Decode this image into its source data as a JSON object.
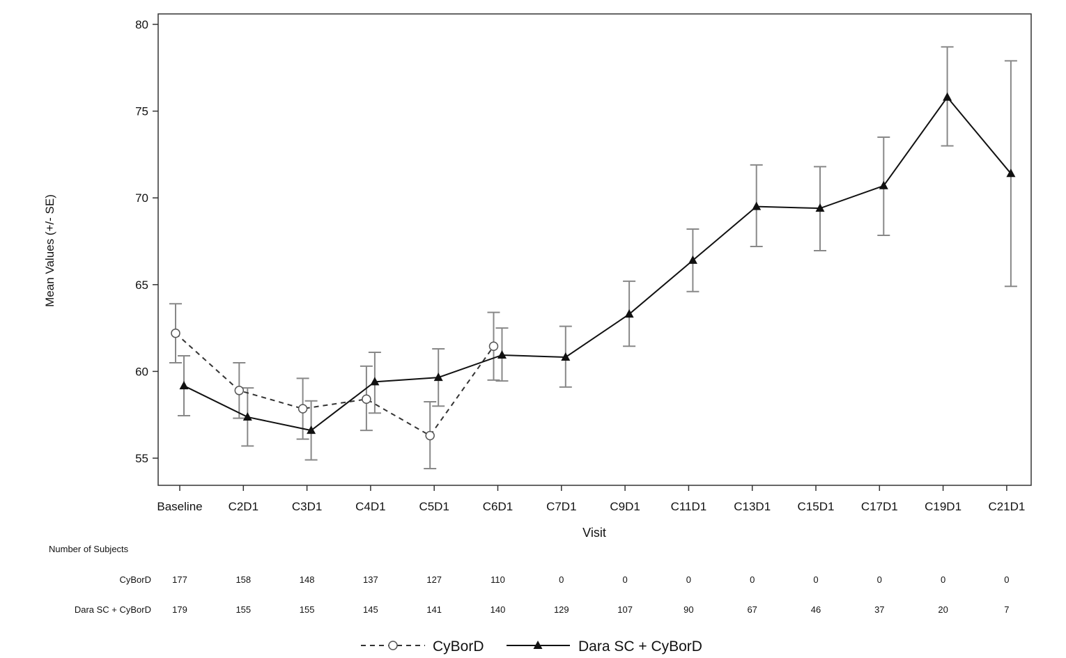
{
  "chart_data": {
    "type": "line",
    "xlabel": "Visit",
    "ylabel": "Mean Values (+/- SE)",
    "ylim": [
      53.5,
      81
    ],
    "yticks": [
      55,
      60,
      65,
      70,
      75,
      80
    ],
    "grid": false,
    "legend_position": "bottom",
    "categories": [
      "Baseline",
      "C2D1",
      "C3D1",
      "C4D1",
      "C5D1",
      "C6D1",
      "C7D1",
      "C9D1",
      "C11D1",
      "C13D1",
      "C15D1",
      "C17D1",
      "C19D1",
      "C21D1"
    ],
    "series": [
      {
        "name": "CyBorD",
        "style": "dashed",
        "marker": "open-circle",
        "color": "#333333",
        "values": [
          62.2,
          58.9,
          57.85,
          58.4,
          56.3,
          61.45,
          null,
          null,
          null,
          null,
          null,
          null,
          null,
          null
        ],
        "se_upper": [
          63.9,
          60.5,
          59.6,
          60.3,
          58.25,
          63.4,
          null,
          null,
          null,
          null,
          null,
          null,
          null,
          null
        ],
        "se_lower": [
          60.5,
          57.3,
          56.1,
          56.6,
          54.4,
          59.5,
          null,
          null,
          null,
          null,
          null,
          null,
          null,
          null
        ]
      },
      {
        "name": "Dara SC + CyBorD",
        "style": "solid",
        "marker": "filled-triangle",
        "color": "#111111",
        "values": [
          59.17,
          57.37,
          56.6,
          59.4,
          59.65,
          60.94,
          60.82,
          63.3,
          66.4,
          69.5,
          69.4,
          70.7,
          75.8,
          71.4
        ],
        "se_upper": [
          60.9,
          59.05,
          58.3,
          61.1,
          61.3,
          62.5,
          62.6,
          65.2,
          68.2,
          71.9,
          71.8,
          73.5,
          78.7,
          77.9
        ],
        "se_lower": [
          57.45,
          55.7,
          54.9,
          57.6,
          58.0,
          59.45,
          59.1,
          61.45,
          64.6,
          67.2,
          66.96,
          67.84,
          73.0,
          64.9
        ]
      }
    ],
    "error_bar_color": "#888888",
    "subjects_table": {
      "title": "Number of Subjects",
      "rows": [
        {
          "label": "CyBorD",
          "counts": [
            "177",
            "158",
            "148",
            "137",
            "127",
            "110",
            "0",
            "0",
            "0",
            "0",
            "0",
            "0",
            "0",
            "0"
          ]
        },
        {
          "label": "Dara SC + CyBorD",
          "counts": [
            "179",
            "155",
            "155",
            "145",
            "141",
            "140",
            "129",
            "107",
            "90",
            "67",
            "46",
            "37",
            "20",
            "7"
          ]
        }
      ]
    }
  }
}
